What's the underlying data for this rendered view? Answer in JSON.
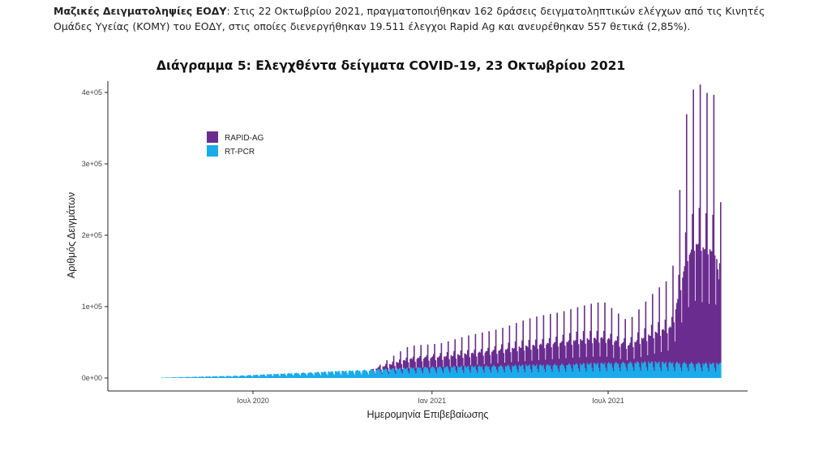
{
  "paragraph": {
    "lead": "Μαζικές Δειγματοληψίες ΕΟΔΥ",
    "text": ": Στις 22 Οκτωβρίου 2021, πραγματοποιήθηκαν 162 δράσεις δειγματοληπτικών ελέγχων από τις Κινητές Ομάδες Υγείας (ΚΟΜΥ) του ΕΟΔΥ, στις οποίες διενεργήθηκαν 19.511 έλεγχοι Rapid Ag και ανευρέθηκαν 557 θετικά (2,85%)."
  },
  "chart_data": {
    "type": "bar",
    "stacked": true,
    "title": "Διάγραμμα 5: Ελεγχθέντα δείγματα COVID-19, 23 Οκτωβρίου 2021",
    "xlabel": "Ημερομηνία Επιβεβαίωσης",
    "ylabel": "Αριθμός Δειγμάτων",
    "ylim": [
      0,
      400000
    ],
    "yticks": [
      0,
      100000,
      200000,
      300000,
      400000
    ],
    "ytick_labels": [
      "0e+00",
      "1e+05",
      "2e+05",
      "3e+05",
      "4e+05"
    ],
    "x_range_days": [
      0,
      600
    ],
    "xticks_days": [
      120,
      304,
      485
    ],
    "xtick_labels": [
      "Ιουλ 2020",
      "Ιαν 2021",
      "Ιουλ 2021"
    ],
    "legend": {
      "position": "top-left",
      "entries": [
        "RAPID-AG",
        "RT-PCR"
      ]
    },
    "series": [
      {
        "name": "RAPID-AG",
        "color": "#6a2c8f",
        "weekly_peaks": [
          {
            "day": 280,
            "value": 30000
          },
          {
            "day": 315,
            "value": 35000
          },
          {
            "day": 350,
            "value": 45000
          },
          {
            "day": 390,
            "value": 60000
          },
          {
            "day": 420,
            "value": 70000
          },
          {
            "day": 450,
            "value": 80000
          },
          {
            "day": 480,
            "value": 85000
          },
          {
            "day": 505,
            "value": 60000
          },
          {
            "day": 530,
            "value": 95000
          },
          {
            "day": 550,
            "value": 120000
          },
          {
            "day": 565,
            "value": 350000
          },
          {
            "day": 575,
            "value": 400000
          },
          {
            "day": 585,
            "value": 380000
          },
          {
            "day": 595,
            "value": 375000
          },
          {
            "day": 600,
            "value": 225000
          }
        ]
      },
      {
        "name": "RT-PCR",
        "color": "#1aacea",
        "daily_baseline": [
          {
            "day": 25,
            "value": 500
          },
          {
            "day": 100,
            "value": 3000
          },
          {
            "day": 220,
            "value": 10000
          },
          {
            "day": 300,
            "value": 15000
          },
          {
            "day": 420,
            "value": 18000
          },
          {
            "day": 520,
            "value": 22000
          },
          {
            "day": 600,
            "value": 20000
          }
        ]
      }
    ]
  }
}
